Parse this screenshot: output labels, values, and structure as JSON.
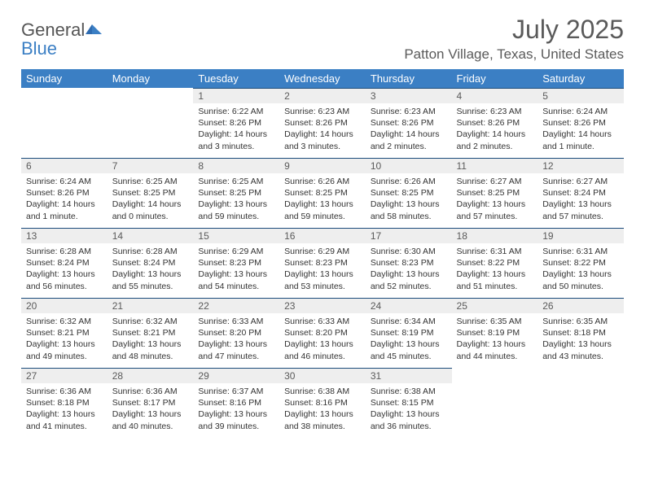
{
  "brand": {
    "part1": "General",
    "part2": "Blue"
  },
  "title": "July 2025",
  "location": "Patton Village, Texas, United States",
  "colors": {
    "header_bg": "#3b7fc4",
    "header_text": "#ffffff",
    "daynum_bg": "#eeeeee",
    "daynum_border": "#1a4a7a",
    "body_text": "#333333",
    "title_text": "#5a5a5a"
  },
  "day_labels": [
    "Sunday",
    "Monday",
    "Tuesday",
    "Wednesday",
    "Thursday",
    "Friday",
    "Saturday"
  ],
  "weeks": [
    [
      null,
      null,
      {
        "n": "1",
        "sr": "Sunrise: 6:22 AM",
        "ss": "Sunset: 8:26 PM",
        "dl": "Daylight: 14 hours and 3 minutes."
      },
      {
        "n": "2",
        "sr": "Sunrise: 6:23 AM",
        "ss": "Sunset: 8:26 PM",
        "dl": "Daylight: 14 hours and 3 minutes."
      },
      {
        "n": "3",
        "sr": "Sunrise: 6:23 AM",
        "ss": "Sunset: 8:26 PM",
        "dl": "Daylight: 14 hours and 2 minutes."
      },
      {
        "n": "4",
        "sr": "Sunrise: 6:23 AM",
        "ss": "Sunset: 8:26 PM",
        "dl": "Daylight: 14 hours and 2 minutes."
      },
      {
        "n": "5",
        "sr": "Sunrise: 6:24 AM",
        "ss": "Sunset: 8:26 PM",
        "dl": "Daylight: 14 hours and 1 minute."
      }
    ],
    [
      {
        "n": "6",
        "sr": "Sunrise: 6:24 AM",
        "ss": "Sunset: 8:26 PM",
        "dl": "Daylight: 14 hours and 1 minute."
      },
      {
        "n": "7",
        "sr": "Sunrise: 6:25 AM",
        "ss": "Sunset: 8:25 PM",
        "dl": "Daylight: 14 hours and 0 minutes."
      },
      {
        "n": "8",
        "sr": "Sunrise: 6:25 AM",
        "ss": "Sunset: 8:25 PM",
        "dl": "Daylight: 13 hours and 59 minutes."
      },
      {
        "n": "9",
        "sr": "Sunrise: 6:26 AM",
        "ss": "Sunset: 8:25 PM",
        "dl": "Daylight: 13 hours and 59 minutes."
      },
      {
        "n": "10",
        "sr": "Sunrise: 6:26 AM",
        "ss": "Sunset: 8:25 PM",
        "dl": "Daylight: 13 hours and 58 minutes."
      },
      {
        "n": "11",
        "sr": "Sunrise: 6:27 AM",
        "ss": "Sunset: 8:25 PM",
        "dl": "Daylight: 13 hours and 57 minutes."
      },
      {
        "n": "12",
        "sr": "Sunrise: 6:27 AM",
        "ss": "Sunset: 8:24 PM",
        "dl": "Daylight: 13 hours and 57 minutes."
      }
    ],
    [
      {
        "n": "13",
        "sr": "Sunrise: 6:28 AM",
        "ss": "Sunset: 8:24 PM",
        "dl": "Daylight: 13 hours and 56 minutes."
      },
      {
        "n": "14",
        "sr": "Sunrise: 6:28 AM",
        "ss": "Sunset: 8:24 PM",
        "dl": "Daylight: 13 hours and 55 minutes."
      },
      {
        "n": "15",
        "sr": "Sunrise: 6:29 AM",
        "ss": "Sunset: 8:23 PM",
        "dl": "Daylight: 13 hours and 54 minutes."
      },
      {
        "n": "16",
        "sr": "Sunrise: 6:29 AM",
        "ss": "Sunset: 8:23 PM",
        "dl": "Daylight: 13 hours and 53 minutes."
      },
      {
        "n": "17",
        "sr": "Sunrise: 6:30 AM",
        "ss": "Sunset: 8:23 PM",
        "dl": "Daylight: 13 hours and 52 minutes."
      },
      {
        "n": "18",
        "sr": "Sunrise: 6:31 AM",
        "ss": "Sunset: 8:22 PM",
        "dl": "Daylight: 13 hours and 51 minutes."
      },
      {
        "n": "19",
        "sr": "Sunrise: 6:31 AM",
        "ss": "Sunset: 8:22 PM",
        "dl": "Daylight: 13 hours and 50 minutes."
      }
    ],
    [
      {
        "n": "20",
        "sr": "Sunrise: 6:32 AM",
        "ss": "Sunset: 8:21 PM",
        "dl": "Daylight: 13 hours and 49 minutes."
      },
      {
        "n": "21",
        "sr": "Sunrise: 6:32 AM",
        "ss": "Sunset: 8:21 PM",
        "dl": "Daylight: 13 hours and 48 minutes."
      },
      {
        "n": "22",
        "sr": "Sunrise: 6:33 AM",
        "ss": "Sunset: 8:20 PM",
        "dl": "Daylight: 13 hours and 47 minutes."
      },
      {
        "n": "23",
        "sr": "Sunrise: 6:33 AM",
        "ss": "Sunset: 8:20 PM",
        "dl": "Daylight: 13 hours and 46 minutes."
      },
      {
        "n": "24",
        "sr": "Sunrise: 6:34 AM",
        "ss": "Sunset: 8:19 PM",
        "dl": "Daylight: 13 hours and 45 minutes."
      },
      {
        "n": "25",
        "sr": "Sunrise: 6:35 AM",
        "ss": "Sunset: 8:19 PM",
        "dl": "Daylight: 13 hours and 44 minutes."
      },
      {
        "n": "26",
        "sr": "Sunrise: 6:35 AM",
        "ss": "Sunset: 8:18 PM",
        "dl": "Daylight: 13 hours and 43 minutes."
      }
    ],
    [
      {
        "n": "27",
        "sr": "Sunrise: 6:36 AM",
        "ss": "Sunset: 8:18 PM",
        "dl": "Daylight: 13 hours and 41 minutes."
      },
      {
        "n": "28",
        "sr": "Sunrise: 6:36 AM",
        "ss": "Sunset: 8:17 PM",
        "dl": "Daylight: 13 hours and 40 minutes."
      },
      {
        "n": "29",
        "sr": "Sunrise: 6:37 AM",
        "ss": "Sunset: 8:16 PM",
        "dl": "Daylight: 13 hours and 39 minutes."
      },
      {
        "n": "30",
        "sr": "Sunrise: 6:38 AM",
        "ss": "Sunset: 8:16 PM",
        "dl": "Daylight: 13 hours and 38 minutes."
      },
      {
        "n": "31",
        "sr": "Sunrise: 6:38 AM",
        "ss": "Sunset: 8:15 PM",
        "dl": "Daylight: 13 hours and 36 minutes."
      },
      null,
      null
    ]
  ]
}
